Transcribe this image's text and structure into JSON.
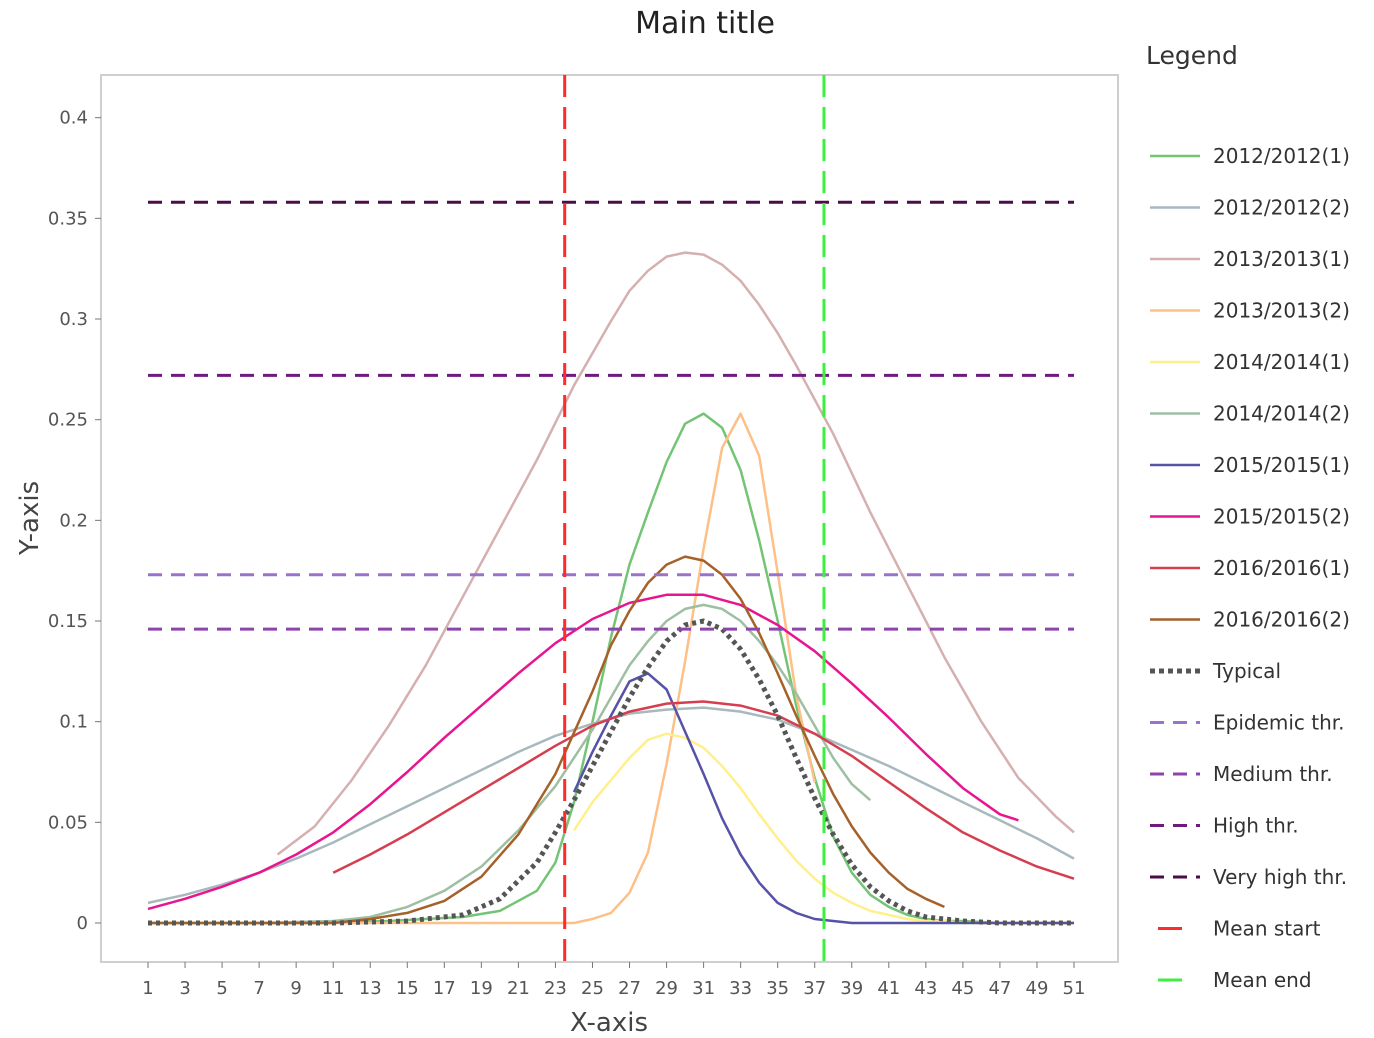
{
  "chart_data": {
    "type": "line",
    "title": "Main title",
    "xlabel": "X-axis",
    "ylabel": "Y-axis",
    "xlim": [
      0,
      53
    ],
    "ylim": [
      -0.019,
      0.42
    ],
    "x_ticks": [
      1,
      3,
      5,
      7,
      9,
      11,
      13,
      15,
      17,
      19,
      21,
      23,
      25,
      27,
      29,
      31,
      33,
      35,
      37,
      39,
      41,
      43,
      45,
      47,
      49,
      51
    ],
    "y_ticks": [
      {
        "value": 0,
        "label": "0"
      },
      {
        "value": 0.05,
        "label": "0.05"
      },
      {
        "value": 0.1,
        "label": "0.1"
      },
      {
        "value": 0.15,
        "label": "0.15"
      },
      {
        "value": 0.2,
        "label": "0.2"
      },
      {
        "value": 0.25,
        "label": "0.25"
      },
      {
        "value": 0.3,
        "label": "0.3"
      },
      {
        "value": 0.35,
        "label": "0.35"
      },
      {
        "value": 0.4,
        "label": "0.4"
      }
    ],
    "grid": false,
    "legend": {
      "title": "Legend",
      "position": "right"
    },
    "series": [
      {
        "name": "2012/2012(1)",
        "color": "#74c476",
        "style": "solid",
        "x": [
          1,
          10,
          14,
          18,
          20,
          22,
          23,
          24,
          25,
          26,
          27,
          28,
          29,
          30,
          31,
          32,
          33,
          34,
          35,
          36,
          37,
          38,
          39,
          40,
          41,
          42,
          43,
          44,
          45,
          47,
          49,
          51
        ],
        "values": [
          0,
          0,
          0.001,
          0.003,
          0.006,
          0.016,
          0.03,
          0.06,
          0.1,
          0.142,
          0.178,
          0.204,
          0.229,
          0.248,
          0.253,
          0.246,
          0.225,
          0.19,
          0.15,
          0.108,
          0.072,
          0.043,
          0.025,
          0.014,
          0.008,
          0.004,
          0.002,
          0.001,
          0.001,
          0,
          0,
          0
        ]
      },
      {
        "name": "2012/2012(2)",
        "color": "#a8b9be",
        "style": "solid",
        "x": [
          1,
          3,
          5,
          7,
          9,
          11,
          13,
          15,
          17,
          19,
          21,
          23,
          25,
          27,
          29,
          31,
          33,
          35,
          37,
          39,
          41,
          43,
          45,
          47,
          49,
          51
        ],
        "values": [
          0.01,
          0.014,
          0.019,
          0.025,
          0.032,
          0.04,
          0.049,
          0.058,
          0.067,
          0.076,
          0.085,
          0.093,
          0.099,
          0.104,
          0.106,
          0.107,
          0.105,
          0.101,
          0.094,
          0.086,
          0.078,
          0.069,
          0.06,
          0.051,
          0.042,
          0.032
        ]
      },
      {
        "name": "2013/2013(1)",
        "color": "#d6b0b0",
        "style": "solid",
        "x": [
          8,
          10,
          12,
          14,
          16,
          18,
          20,
          22,
          24,
          26,
          27,
          28,
          29,
          30,
          31,
          32,
          33,
          34,
          35,
          36,
          38,
          40,
          42,
          44,
          46,
          48,
          50,
          51
        ],
        "values": [
          0.034,
          0.048,
          0.071,
          0.098,
          0.128,
          0.162,
          0.196,
          0.23,
          0.267,
          0.299,
          0.314,
          0.324,
          0.331,
          0.333,
          0.332,
          0.327,
          0.319,
          0.307,
          0.293,
          0.277,
          0.243,
          0.204,
          0.168,
          0.132,
          0.1,
          0.072,
          0.053,
          0.045
        ]
      },
      {
        "name": "2013/2013(2)",
        "color": "#fdc086",
        "style": "solid",
        "x": [
          1,
          5,
          10,
          15,
          20,
          24,
          25,
          26,
          27,
          28,
          29,
          30,
          31,
          32,
          33,
          34,
          35,
          36,
          37
        ],
        "values": [
          0,
          0,
          0,
          0,
          0,
          0,
          0.002,
          0.005,
          0.015,
          0.035,
          0.079,
          0.13,
          0.186,
          0.236,
          0.253,
          0.232,
          0.174,
          0.113,
          0.07
        ]
      },
      {
        "name": "2014/2014(1)",
        "color": "#fff08c",
        "style": "solid",
        "x": [
          24,
          25,
          26,
          27,
          28,
          29,
          30,
          31,
          32,
          33,
          34,
          35,
          36,
          37,
          38,
          39,
          40,
          41,
          42,
          43,
          44,
          45,
          47,
          49,
          51
        ],
        "values": [
          0.046,
          0.06,
          0.071,
          0.082,
          0.091,
          0.094,
          0.092,
          0.087,
          0.078,
          0.067,
          0.054,
          0.042,
          0.031,
          0.022,
          0.015,
          0.01,
          0.006,
          0.004,
          0.002,
          0.001,
          0.001,
          0,
          0,
          0,
          0
        ]
      },
      {
        "name": "2014/2014(2)",
        "color": "#9fbfa3",
        "style": "solid",
        "x": [
          1,
          7,
          11,
          13,
          15,
          17,
          19,
          21,
          23,
          25,
          27,
          28,
          29,
          30,
          31,
          32,
          33,
          34,
          35,
          36,
          37,
          38,
          39,
          40
        ],
        "values": [
          0,
          0,
          0.001,
          0.003,
          0.008,
          0.016,
          0.028,
          0.046,
          0.068,
          0.096,
          0.128,
          0.14,
          0.15,
          0.156,
          0.158,
          0.156,
          0.15,
          0.14,
          0.128,
          0.114,
          0.098,
          0.082,
          0.069,
          0.061
        ]
      },
      {
        "name": "2015/2015(1)",
        "color": "#5652a8",
        "style": "solid",
        "x": [
          24,
          25,
          26,
          27,
          28,
          29,
          30,
          31,
          32,
          33,
          34,
          35,
          36,
          37,
          38,
          39,
          40,
          42,
          45,
          48,
          51
        ],
        "values": [
          0.065,
          0.085,
          0.103,
          0.12,
          0.124,
          0.116,
          0.095,
          0.074,
          0.052,
          0.034,
          0.02,
          0.01,
          0.005,
          0.002,
          0.001,
          0,
          0,
          0,
          0,
          0,
          0
        ]
      },
      {
        "name": "2015/2015(2)",
        "color": "#e7158f",
        "style": "solid",
        "x": [
          1,
          3,
          5,
          7,
          9,
          11,
          13,
          15,
          17,
          19,
          21,
          23,
          25,
          27,
          29,
          31,
          33,
          35,
          37,
          39,
          41,
          43,
          45,
          47,
          48
        ],
        "values": [
          0.007,
          0.012,
          0.018,
          0.025,
          0.034,
          0.045,
          0.059,
          0.075,
          0.092,
          0.108,
          0.124,
          0.139,
          0.151,
          0.159,
          0.163,
          0.163,
          0.158,
          0.148,
          0.135,
          0.119,
          0.102,
          0.084,
          0.067,
          0.054,
          0.051
        ]
      },
      {
        "name": "2016/2016(1)",
        "color": "#d53e4f",
        "style": "solid",
        "x": [
          11,
          13,
          15,
          17,
          19,
          21,
          23,
          25,
          27,
          29,
          31,
          33,
          35,
          37,
          39,
          41,
          43,
          45,
          47,
          49,
          51
        ],
        "values": [
          0.025,
          0.034,
          0.044,
          0.055,
          0.066,
          0.077,
          0.088,
          0.098,
          0.105,
          0.109,
          0.11,
          0.108,
          0.103,
          0.094,
          0.083,
          0.07,
          0.057,
          0.045,
          0.036,
          0.028,
          0.022
        ]
      },
      {
        "name": "2016/2016(2)",
        "color": "#a6612a",
        "style": "solid",
        "x": [
          1,
          7,
          11,
          13,
          15,
          17,
          19,
          21,
          23,
          25,
          26,
          27,
          28,
          29,
          30,
          31,
          32,
          33,
          34,
          35,
          36,
          37,
          38,
          39,
          40,
          41,
          42,
          43,
          44
        ],
        "values": [
          0,
          0,
          0,
          0.002,
          0.005,
          0.011,
          0.023,
          0.044,
          0.074,
          0.115,
          0.138,
          0.155,
          0.169,
          0.178,
          0.182,
          0.18,
          0.173,
          0.161,
          0.144,
          0.124,
          0.103,
          0.083,
          0.064,
          0.048,
          0.035,
          0.025,
          0.017,
          0.012,
          0.008
        ]
      },
      {
        "name": "Typical",
        "color": "#555555",
        "style": "dotted",
        "x": [
          1,
          7,
          11,
          15,
          18,
          20,
          22,
          23,
          24,
          25,
          26,
          27,
          28,
          29,
          30,
          31,
          32,
          33,
          34,
          35,
          36,
          37,
          38,
          39,
          40,
          41,
          42,
          43,
          44,
          45,
          47,
          49,
          51
        ],
        "values": [
          0,
          0,
          0,
          0.001,
          0.004,
          0.012,
          0.03,
          0.045,
          0.061,
          0.078,
          0.095,
          0.112,
          0.127,
          0.14,
          0.148,
          0.15,
          0.146,
          0.136,
          0.121,
          0.103,
          0.082,
          0.062,
          0.044,
          0.029,
          0.018,
          0.011,
          0.006,
          0.003,
          0.002,
          0.001,
          0,
          0,
          0
        ]
      },
      {
        "name": "Epidemic thr.",
        "color": "#9b72c9",
        "style": "dashed",
        "x": [
          1,
          51
        ],
        "values": [
          0.173,
          0.173
        ]
      },
      {
        "name": "Medium thr.",
        "color": "#8e44ad",
        "style": "dashed",
        "x": [
          1,
          51
        ],
        "values": [
          0.146,
          0.146
        ]
      },
      {
        "name": "High thr.",
        "color": "#6e1a7e",
        "style": "dashed",
        "x": [
          1,
          51
        ],
        "values": [
          0.272,
          0.272
        ]
      },
      {
        "name": "Very high thr.",
        "color": "#4a0d48",
        "style": "dashed",
        "x": [
          1,
          51
        ],
        "values": [
          0.358,
          0.358
        ]
      }
    ],
    "vlines": [
      {
        "name": "Mean start",
        "color": "#ff2a2a",
        "x": 23.5
      },
      {
        "name": "Mean end",
        "color": "#3cf03c",
        "x": 37.5
      }
    ]
  }
}
